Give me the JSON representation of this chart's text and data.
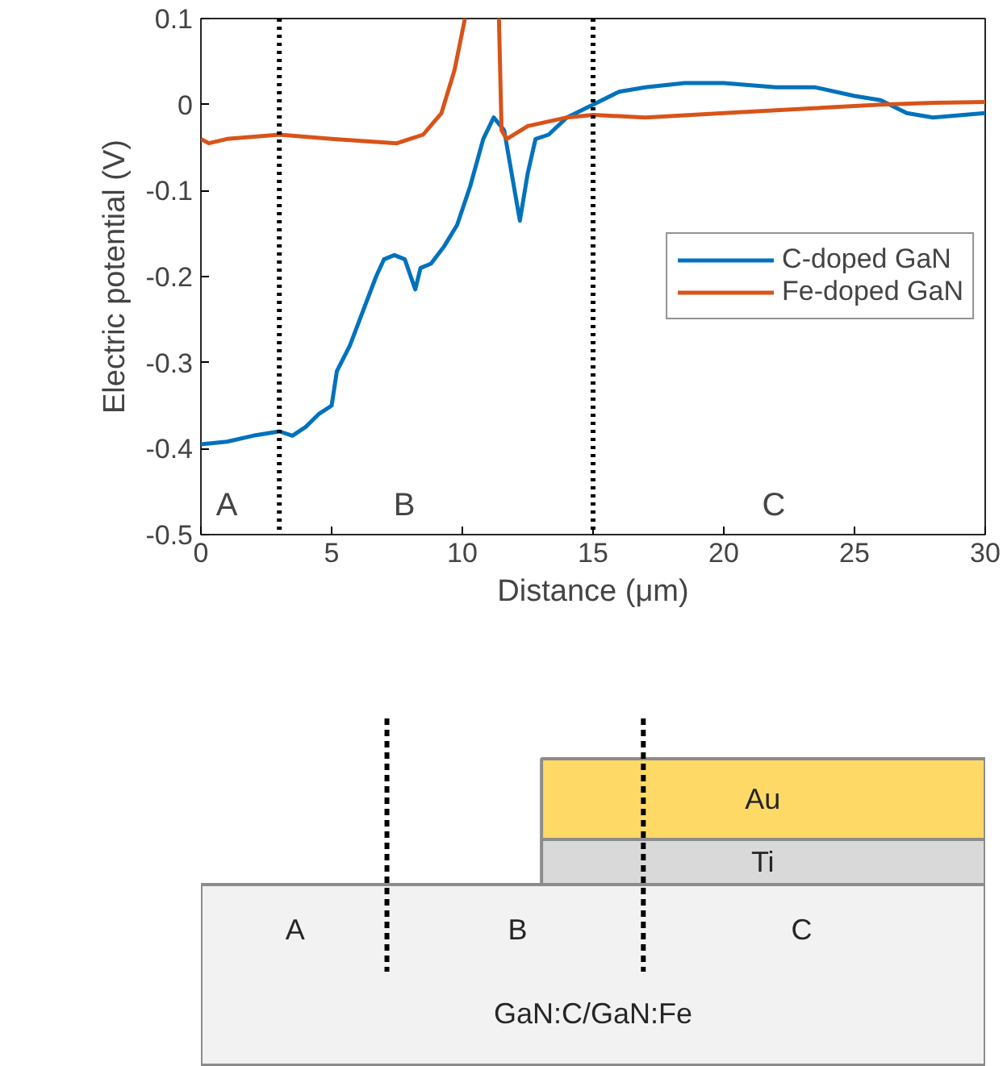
{
  "chart_data": {
    "type": "line",
    "xlabel": "Distance (μm)",
    "ylabel": "Electric potential (V)",
    "xlim": [
      0,
      30
    ],
    "ylim": [
      -0.5,
      0.1
    ],
    "xticks": [
      0,
      5,
      10,
      15,
      20,
      25,
      30
    ],
    "yticks": [
      {
        "value": -0.5,
        "label": "-0.5"
      },
      {
        "value": -0.4,
        "label": "-0.4"
      },
      {
        "value": -0.3,
        "label": "-0.3"
      },
      {
        "value": -0.2,
        "label": "-0.2"
      },
      {
        "value": -0.1,
        "label": "-0.1"
      },
      0,
      {
        "value": 0.1,
        "label": "0.1"
      }
    ],
    "grid": false,
    "legend": "right",
    "marker": "none",
    "line_style": "solid",
    "series": [
      {
        "name": "C-doped GaN",
        "color": "#0072bd",
        "x": [
          0,
          1,
          2,
          3,
          3.5,
          4,
          4.5,
          5,
          5.2,
          5.7,
          6.2,
          6.7,
          7,
          7.4,
          7.8,
          8.2,
          8.4,
          8.8,
          9.3,
          9.8,
          10.3,
          10.8,
          11.2,
          11.6,
          12.0,
          12.2,
          12.5,
          12.8,
          13.3,
          14,
          15,
          16,
          17,
          18.5,
          20,
          22,
          23.5,
          25,
          26,
          27,
          28,
          30
        ],
        "values": [
          -0.395,
          -0.392,
          -0.385,
          -0.38,
          -0.385,
          -0.375,
          -0.36,
          -0.35,
          -0.31,
          -0.28,
          -0.24,
          -0.2,
          -0.18,
          -0.175,
          -0.18,
          -0.215,
          -0.19,
          -0.185,
          -0.165,
          -0.14,
          -0.095,
          -0.04,
          -0.015,
          -0.03,
          -0.1,
          -0.135,
          -0.08,
          -0.04,
          -0.035,
          -0.015,
          0.0,
          0.015,
          0.02,
          0.025,
          0.025,
          0.02,
          0.02,
          0.01,
          0.005,
          -0.01,
          -0.015,
          -0.01
        ]
      },
      {
        "name": "Fe-doped GaN",
        "color": "#d95319",
        "x": [
          0,
          0.3,
          1,
          3,
          5,
          7.5,
          8.5,
          9.2,
          9.7,
          10.1,
          10.8,
          11.4,
          11.5,
          11.7,
          12.5,
          14,
          15,
          17,
          20,
          23,
          26,
          28,
          30
        ],
        "values": [
          -0.04,
          -0.045,
          -0.04,
          -0.035,
          -0.04,
          -0.045,
          -0.035,
          -0.01,
          0.04,
          0.1,
          null,
          0.1,
          -0.03,
          -0.04,
          -0.025,
          -0.015,
          -0.012,
          -0.015,
          -0.01,
          -0.005,
          0.0,
          0.002,
          0.003
        ]
      }
    ],
    "ref_lines": [
      {
        "axis": "x",
        "value": 3,
        "color": "#000000",
        "line_style": "dotted"
      },
      {
        "axis": "x",
        "value": 15,
        "color": "#000000",
        "line_style": "dotted"
      }
    ],
    "annotations": [
      "A",
      "B",
      "C",
      "Au",
      "Ti",
      "A",
      "B",
      "C",
      "GaN:C/GaN:Fe"
    ]
  }
}
